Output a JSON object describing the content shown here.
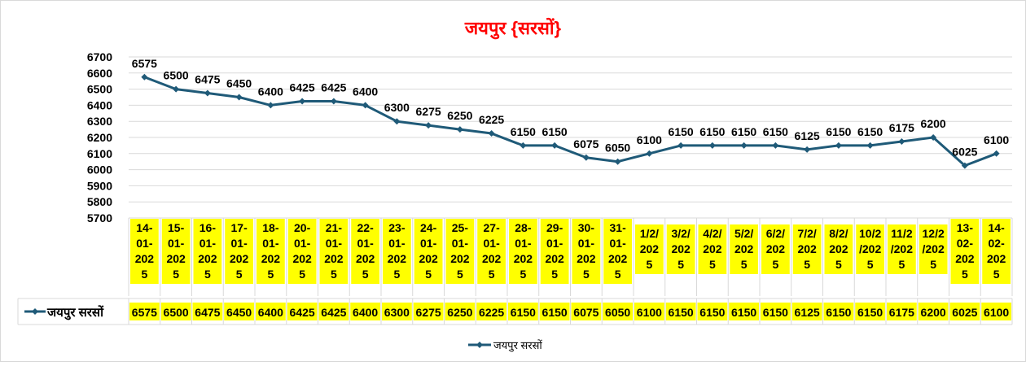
{
  "chart_data": {
    "type": "line",
    "title": "जयपुर {सरसों}",
    "xlabel": "",
    "ylabel": "",
    "ylim": [
      5700,
      6700
    ],
    "y_ticks": [
      5700,
      5800,
      5900,
      6000,
      6100,
      6200,
      6300,
      6400,
      6500,
      6600,
      6700
    ],
    "grid": true,
    "legend_position": "bottom",
    "data_table": true,
    "categories": [
      "14-01-2025",
      "15-01-2025",
      "16-01-2025",
      "17-01-2025",
      "18-01-2025",
      "20-01-2025",
      "21-01-2025",
      "22-01-2025",
      "23-01-2025",
      "24-01-2025",
      "25-01-2025",
      "27-01-2025",
      "28-01-2025",
      "29-01-2025",
      "30-01-2025",
      "31-01-2025",
      "1/2/2025",
      "3/2/2025",
      "4/2/2025",
      "5/2/2025",
      "6/2/2025",
      "7/2/2025",
      "8/2/2025",
      "10/2/2025",
      "11/2/2025",
      "12/2/2025",
      "13-02-2025",
      "14-02-2025"
    ],
    "category_lines": [
      [
        "14-",
        "01-",
        "202",
        "5"
      ],
      [
        "15-",
        "01-",
        "202",
        "5"
      ],
      [
        "16-",
        "01-",
        "202",
        "5"
      ],
      [
        "17-",
        "01-",
        "202",
        "5"
      ],
      [
        "18-",
        "01-",
        "202",
        "5"
      ],
      [
        "20-",
        "01-",
        "202",
        "5"
      ],
      [
        "21-",
        "01-",
        "202",
        "5"
      ],
      [
        "22-",
        "01-",
        "202",
        "5"
      ],
      [
        "23-",
        "01-",
        "202",
        "5"
      ],
      [
        "24-",
        "01-",
        "202",
        "5"
      ],
      [
        "25-",
        "01-",
        "202",
        "5"
      ],
      [
        "27-",
        "01-",
        "202",
        "5"
      ],
      [
        "28-",
        "01-",
        "202",
        "5"
      ],
      [
        "29-",
        "01-",
        "202",
        "5"
      ],
      [
        "30-",
        "01-",
        "202",
        "5"
      ],
      [
        "31-",
        "01-",
        "202",
        "5"
      ],
      [
        "1/2/",
        "202",
        "5"
      ],
      [
        "3/2/",
        "202",
        "5"
      ],
      [
        "4/2/",
        "202",
        "5"
      ],
      [
        "5/2/",
        "202",
        "5"
      ],
      [
        "6/2/",
        "202",
        "5"
      ],
      [
        "7/2/",
        "202",
        "5"
      ],
      [
        "8/2/",
        "202",
        "5"
      ],
      [
        "10/2",
        "/202",
        "5"
      ],
      [
        "11/2",
        "/202",
        "5"
      ],
      [
        "12/2",
        "/202",
        "5"
      ],
      [
        "13-",
        "02-",
        "202",
        "5"
      ],
      [
        "14-",
        "02-",
        "202",
        "5"
      ]
    ],
    "series": [
      {
        "name": "जयपुर सरसों",
        "color": "#1F5A78",
        "values": [
          6575,
          6500,
          6475,
          6450,
          6400,
          6425,
          6425,
          6400,
          6300,
          6275,
          6250,
          6225,
          6150,
          6150,
          6075,
          6050,
          6100,
          6150,
          6150,
          6150,
          6150,
          6125,
          6150,
          6150,
          6175,
          6200,
          6025,
          6100
        ]
      }
    ],
    "colors": {
      "title": "#FF0000",
      "label_highlight": "#FFFF00",
      "gridline": "#D9D9D9",
      "text": "#000000"
    }
  }
}
